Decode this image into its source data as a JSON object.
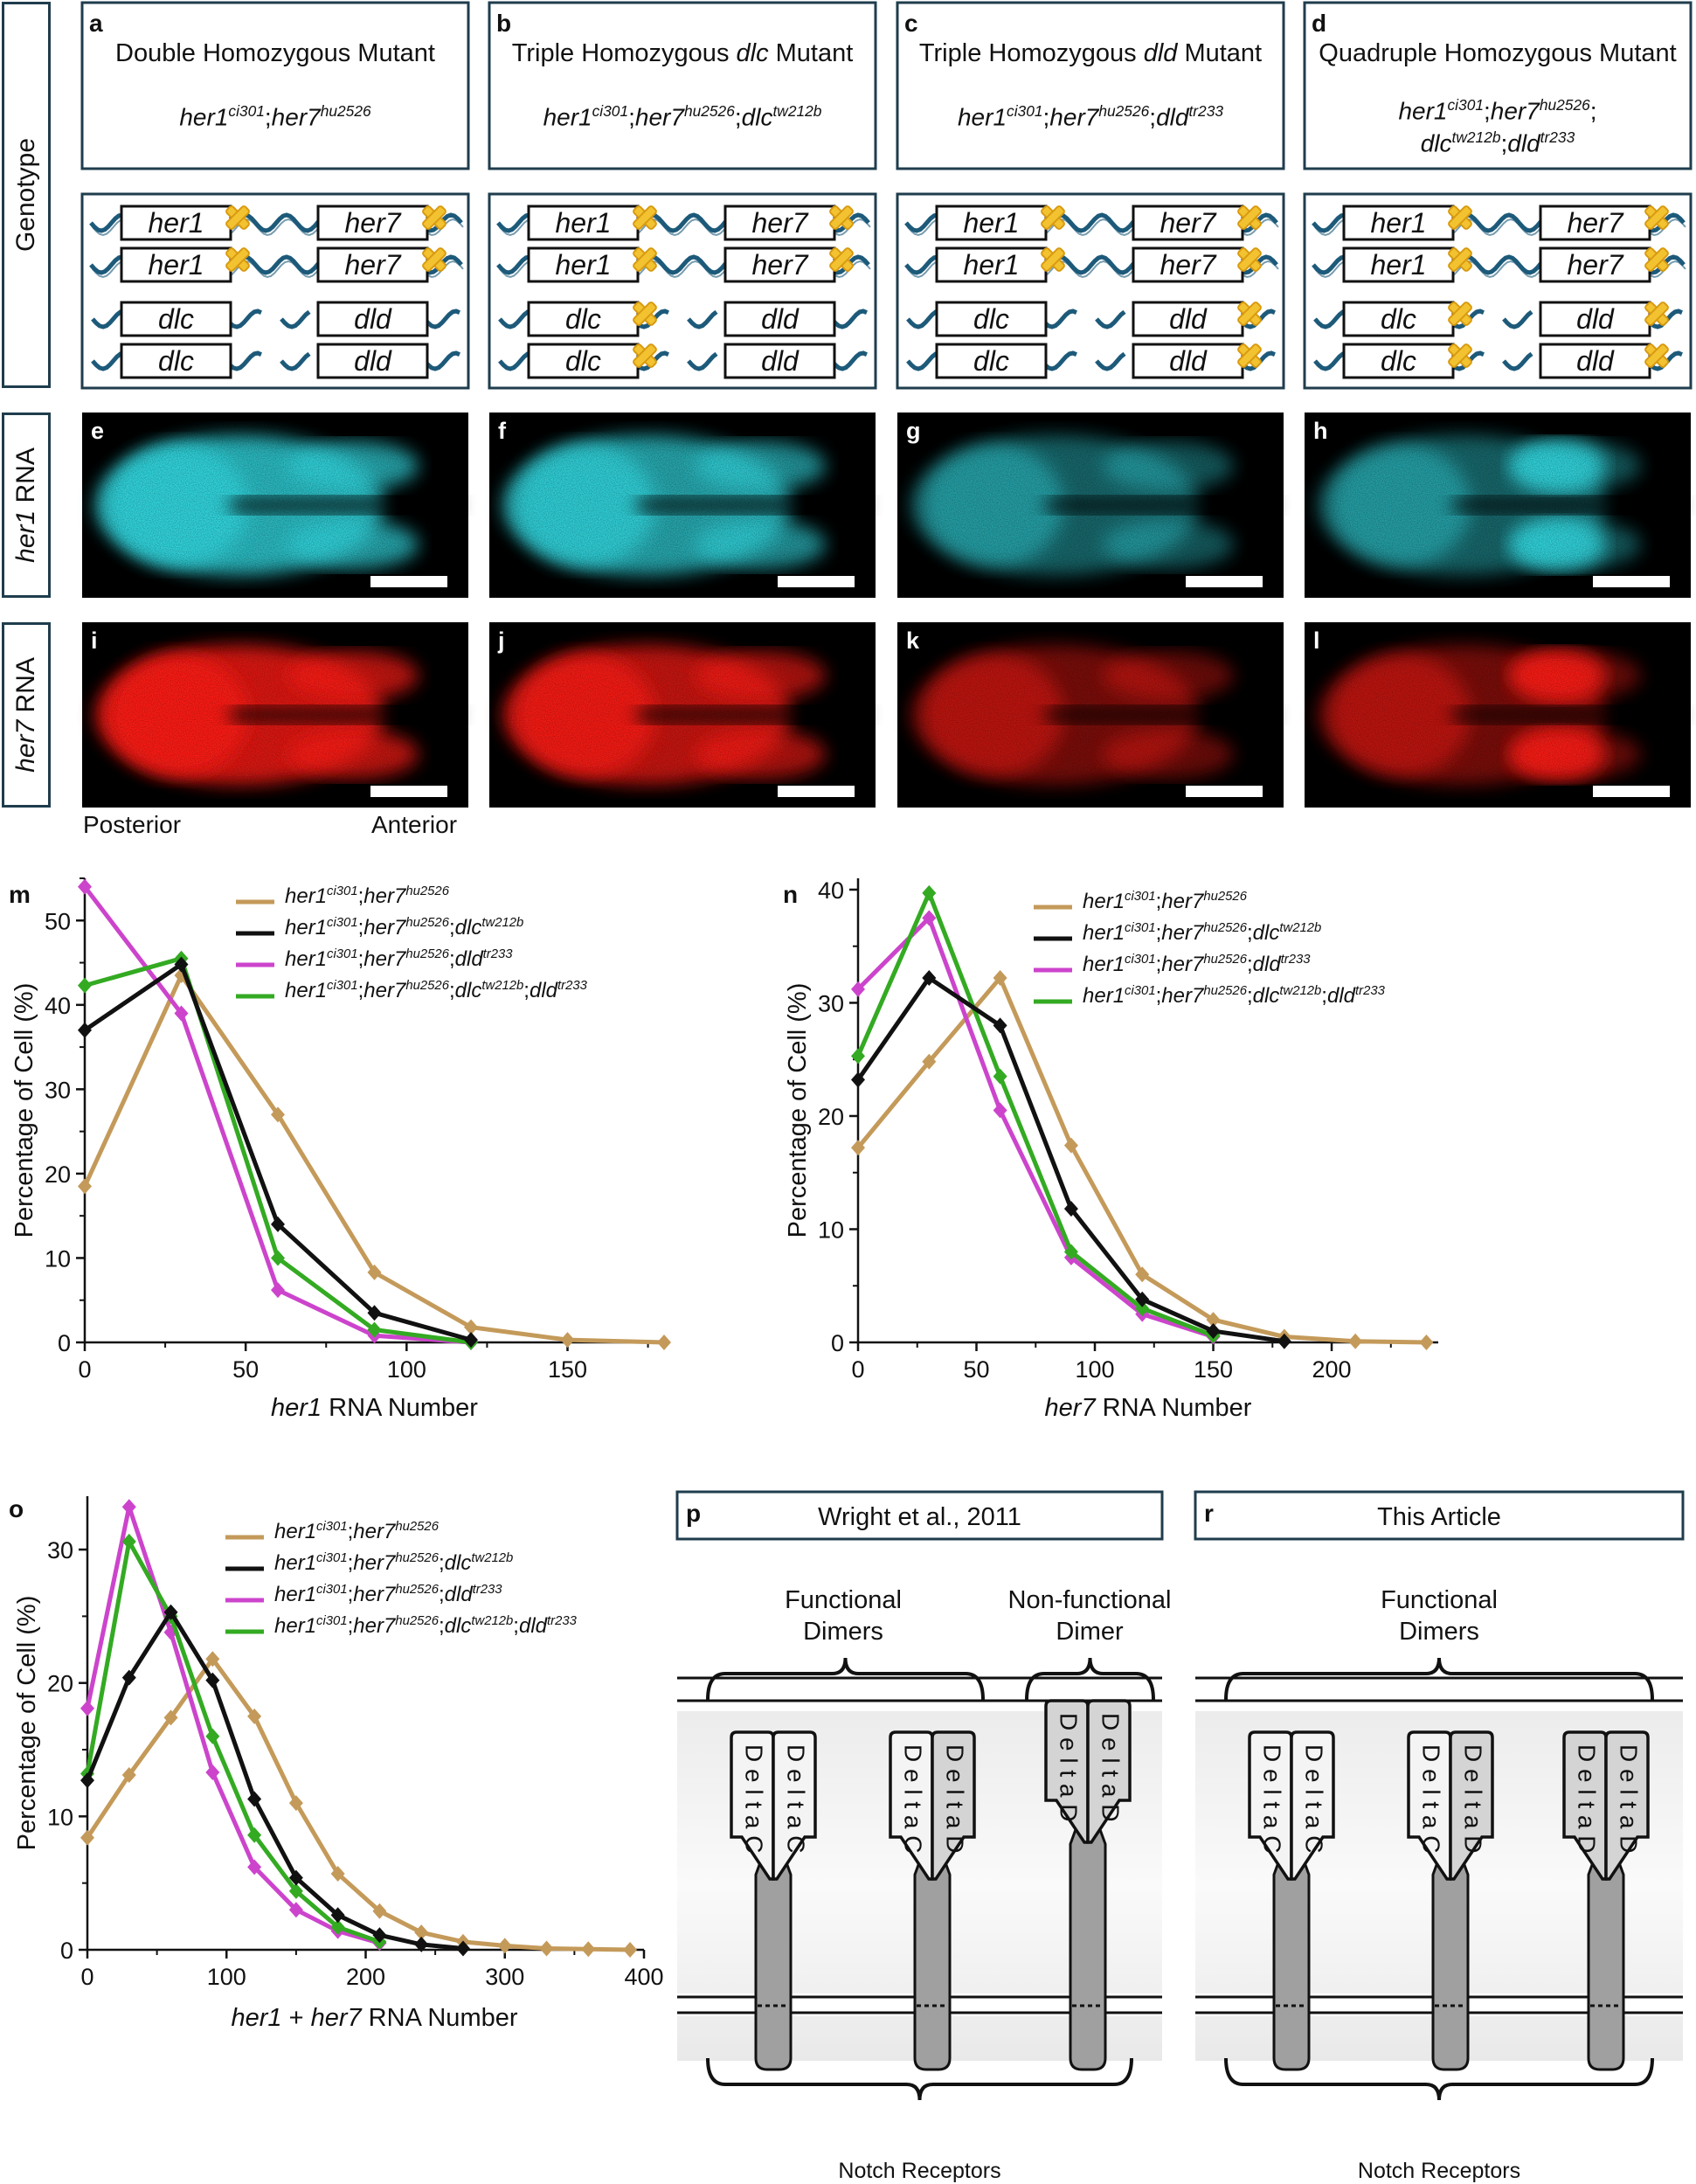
{
  "figure": {
    "genotype_label": "Genotype",
    "her1_rna_label": "her1 RNA",
    "her7_rna_label": "her7 RNA",
    "posterior": "Posterior",
    "anterior": "Anterior",
    "panels": [
      {
        "letter": "a",
        "title": "Double Homozygous Mutant",
        "genotype": [
          [
            "her1",
            "ci301"
          ],
          [
            "her7",
            "hu2526"
          ]
        ],
        "mutated": {
          "her1": true,
          "her7": true,
          "dlc": false,
          "dld": false
        }
      },
      {
        "letter": "b",
        "title": "Triple Homozygous dlc Mutant",
        "title_italic": "dlc",
        "genotype": [
          [
            "her1",
            "ci301"
          ],
          [
            "her7",
            "hu2526"
          ],
          [
            "dlc",
            "tw212b"
          ]
        ],
        "mutated": {
          "her1": true,
          "her7": true,
          "dlc": true,
          "dld": false
        }
      },
      {
        "letter": "c",
        "title": "Triple Homozygous dld Mutant",
        "title_italic": "dld",
        "genotype": [
          [
            "her1",
            "ci301"
          ],
          [
            "her7",
            "hu2526"
          ],
          [
            "dld",
            "tr233"
          ]
        ],
        "mutated": {
          "her1": true,
          "her7": true,
          "dlc": false,
          "dld": true
        }
      },
      {
        "letter": "d",
        "title": "Quadruple Homozygous Mutant",
        "genotype": [
          [
            "her1",
            "ci301"
          ],
          [
            "her7",
            "hu2526"
          ],
          [
            "dlc",
            "tw212b"
          ],
          [
            "dld",
            "tr233"
          ]
        ],
        "mutated": {
          "her1": true,
          "her7": true,
          "dlc": true,
          "dld": true
        }
      }
    ],
    "gene_names": [
      "her1",
      "her7",
      "dlc",
      "dld"
    ],
    "her1_letters": [
      "e",
      "f",
      "g",
      "h"
    ],
    "her7_letters": [
      "i",
      "j",
      "k",
      "l"
    ],
    "colors": {
      "box_border": "#1f3d4d",
      "dna": "#1d5a7a",
      "cross_fill": "#f2c230",
      "cross_stroke": "#d89a10",
      "her1": "#31d6de",
      "her7": "#ff1a14"
    }
  },
  "legend": {
    "entries": [
      {
        "genes": [
          [
            "her1",
            "ci301"
          ],
          [
            "her7",
            "hu2526"
          ]
        ],
        "color": "#c49a5a"
      },
      {
        "genes": [
          [
            "her1",
            "ci301"
          ],
          [
            "her7",
            "hu2526"
          ],
          [
            "dlc",
            "tw212b"
          ]
        ],
        "color": "#111111"
      },
      {
        "genes": [
          [
            "her1",
            "ci301"
          ],
          [
            "her7",
            "hu2526"
          ],
          [
            "dld",
            "tr233"
          ]
        ],
        "color": "#cc44cc"
      },
      {
        "genes": [
          [
            "her1",
            "ci301"
          ],
          [
            "her7",
            "hu2526"
          ],
          [
            "dlc",
            "tw212b"
          ],
          [
            "dld",
            "tr233"
          ]
        ],
        "color": "#33aa22"
      }
    ]
  },
  "chart_data": [
    {
      "panel": "m",
      "type": "line",
      "ylabel": "Percentage of Cell (%)",
      "xlabel": "her1 RNA Number",
      "xlabel_italic": "her1",
      "xlim": [
        0,
        180
      ],
      "ylim": [
        0,
        55
      ],
      "xticks": [
        0,
        50,
        100,
        150
      ],
      "yticks": [
        0,
        10,
        20,
        30,
        40,
        50
      ],
      "series": [
        {
          "name": "her1ci301;her7hu2526",
          "x": [
            0,
            30,
            60,
            90,
            120,
            150,
            180
          ],
          "y": [
            18.5,
            43.5,
            27,
            8.3,
            1.8,
            0.3,
            0
          ]
        },
        {
          "name": "her1ci301;her7hu2526;dlctw212b",
          "x": [
            0,
            30,
            60,
            90,
            120
          ],
          "y": [
            37,
            44.8,
            14,
            3.5,
            0.3
          ]
        },
        {
          "name": "her1ci301;her7hu2526;dldtr233",
          "x": [
            0,
            30,
            60,
            90,
            120
          ],
          "y": [
            54,
            39,
            6.2,
            0.8,
            0
          ]
        },
        {
          "name": "her1ci301;her7hu2526;dlctw212b;dldtr233",
          "x": [
            0,
            30,
            60,
            90,
            120
          ],
          "y": [
            42.3,
            45.5,
            10,
            1.5,
            0
          ]
        }
      ]
    },
    {
      "panel": "n",
      "type": "line",
      "ylabel": "Percentage of Cell (%)",
      "xlabel": "her7 RNA Number",
      "xlabel_italic": "her7",
      "xlim": [
        0,
        245
      ],
      "ylim": [
        0,
        41
      ],
      "xticks": [
        0,
        50,
        100,
        150,
        200
      ],
      "yticks": [
        0,
        10,
        20,
        30,
        40
      ],
      "series": [
        {
          "name": "her1ci301;her7hu2526",
          "x": [
            0,
            30,
            60,
            90,
            120,
            150,
            180,
            210,
            240
          ],
          "y": [
            17.2,
            24.8,
            32.2,
            17.4,
            6,
            2,
            0.5,
            0.1,
            0
          ]
        },
        {
          "name": "her1ci301;her7hu2526;dlctw212b",
          "x": [
            0,
            30,
            60,
            90,
            120,
            150,
            180
          ],
          "y": [
            23.2,
            32.2,
            28,
            11.8,
            3.8,
            1,
            0.1
          ]
        },
        {
          "name": "her1ci301;her7hu2526;dldtr233",
          "x": [
            0,
            30,
            60,
            90,
            120,
            150
          ],
          "y": [
            31.2,
            37.5,
            20.5,
            7.5,
            2.5,
            0.5
          ]
        },
        {
          "name": "her1ci301;her7hu2526;dlctw212b;dldtr233",
          "x": [
            0,
            30,
            60,
            90,
            120,
            150
          ],
          "y": [
            25.3,
            39.7,
            23.5,
            8,
            3,
            0.6
          ]
        }
      ]
    },
    {
      "panel": "o",
      "type": "line",
      "ylabel": "Percentage of Cell (%)",
      "xlabel": "her1 + her7 RNA Number",
      "xlim": [
        0,
        400
      ],
      "ylim": [
        0,
        34
      ],
      "xticks": [
        0,
        100,
        200,
        300,
        400
      ],
      "yticks": [
        0,
        10,
        20,
        30
      ],
      "series": [
        {
          "name": "her1ci301;her7hu2526",
          "x": [
            0,
            30,
            60,
            90,
            120,
            150,
            180,
            210,
            240,
            270,
            300,
            330,
            360,
            390
          ],
          "y": [
            8.4,
            13.1,
            17.4,
            21.8,
            17.5,
            11,
            5.7,
            2.9,
            1.3,
            0.6,
            0.3,
            0.1,
            0.05,
            0
          ]
        },
        {
          "name": "her1ci301;her7hu2526;dlctw212b",
          "x": [
            0,
            30,
            60,
            90,
            120,
            150,
            180,
            210,
            240,
            270
          ],
          "y": [
            12.7,
            20.4,
            25.3,
            20.2,
            11.3,
            5.4,
            2.6,
            1.1,
            0.4,
            0.1
          ]
        },
        {
          "name": "her1ci301;her7hu2526;dldtr233",
          "x": [
            0,
            30,
            60,
            90,
            120,
            150,
            180,
            210
          ],
          "y": [
            18.1,
            33.2,
            23.8,
            13.3,
            6.2,
            3,
            1.4,
            0.5
          ]
        },
        {
          "name": "her1ci301;her7hu2526;dlctw212b;dldtr233",
          "x": [
            0,
            30,
            60,
            90,
            120,
            150,
            180,
            210
          ],
          "y": [
            13.2,
            30.6,
            25,
            16,
            8.6,
            4.4,
            1.7,
            0.6
          ]
        }
      ]
    }
  ],
  "diagrams": {
    "p": {
      "letter": "p",
      "title": "Wright et al., 2011",
      "group1": "Functional Dimers",
      "group2_line1": "Non-functional",
      "group2_line2": "Dimer",
      "bottom": "Notch Receptors",
      "dimers": [
        [
          "Delta C",
          "Delta C"
        ],
        [
          "Delta C",
          "Delta D"
        ],
        [
          "Delta D",
          "Delta D"
        ]
      ]
    },
    "r": {
      "letter": "r",
      "title": "This Article",
      "group1": "Functional Dimers",
      "bottom": "Notch Receptors",
      "dimers": [
        [
          "Delta C",
          "Delta C"
        ],
        [
          "Delta C",
          "Delta D"
        ],
        [
          "Delta D",
          "Delta D"
        ]
      ]
    }
  }
}
